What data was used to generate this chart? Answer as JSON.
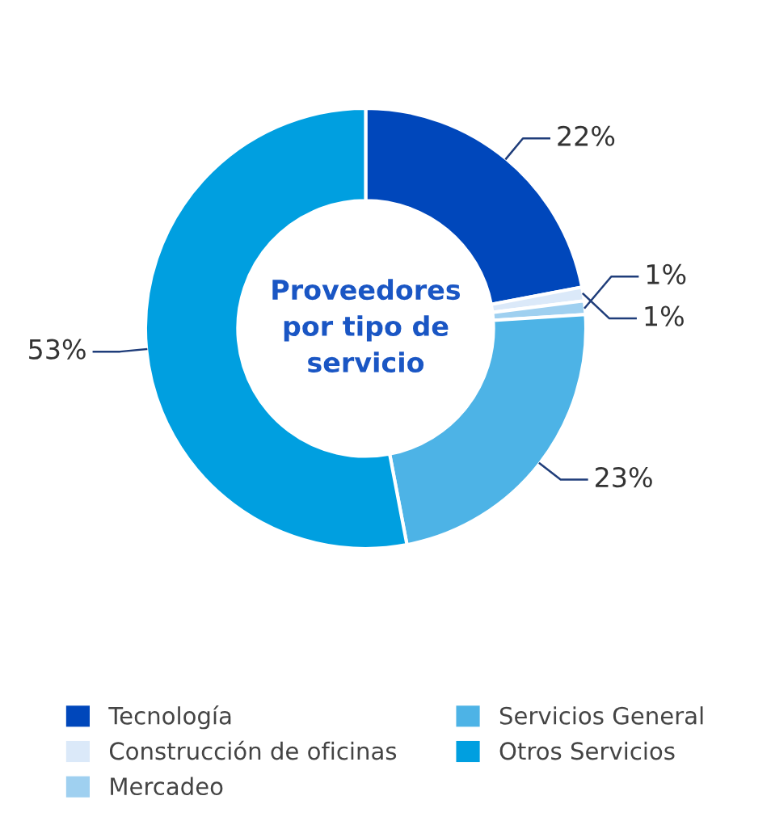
{
  "chart_data": {
    "type": "donut",
    "title": "Proveedores por tipo de servicio",
    "categories": [
      "Tecnología",
      "Construcción de oficinas",
      "Mercadeo",
      "Servicios General",
      "Otros Servicios"
    ],
    "values": [
      22,
      1,
      1,
      23,
      53
    ],
    "colors": [
      "#0047bb",
      "#dbe9f9",
      "#9fd0f0",
      "#4db3e6",
      "#009fe0"
    ],
    "value_labels": [
      "22%",
      "1%",
      "1%",
      "23%",
      "53%"
    ],
    "legend": "bottom"
  }
}
